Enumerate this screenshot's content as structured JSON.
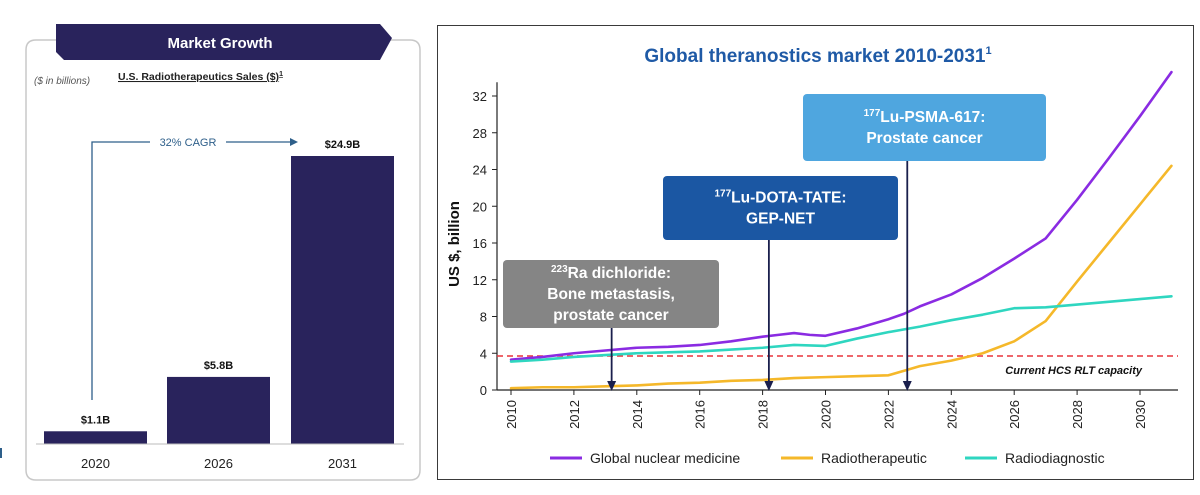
{
  "left_panel": {
    "header": "Market Growth",
    "units_note": "($ in billions)",
    "subtitle": "U.S. Radiotherapeutics Sales ($)",
    "subtitle_sup": "1",
    "cagr_label": "32% CAGR",
    "colors": {
      "bar": "#29235c",
      "header_bg": "#29235c",
      "arrow": "#2e5f8a"
    }
  },
  "right_panel": {
    "title": "Global theranostics market 2010-2031",
    "title_sup": "1",
    "capacity_label": "Current HCS RLT capacity",
    "annotations": [
      {
        "sup": "223",
        "line1": "Ra dichloride:",
        "line2": "Bone metastasis,",
        "line3": "prostate cancer",
        "year": 2013.2
      },
      {
        "sup": "177",
        "line1": "Lu-DOTA-TATE:",
        "line2": "GEP-NET",
        "line3": "",
        "year": 2018.2
      },
      {
        "sup": "177",
        "line1": "Lu-PSMA-617:",
        "line2": "Prostate cancer",
        "line3": "",
        "year": 2022.6
      }
    ],
    "colors": {
      "title": "#1f5aa6",
      "nuclear": "#8a2be2",
      "radiotherapeutic": "#f5b82a",
      "radiodiagnostic": "#2fd6c0",
      "capacity": "#e8343a",
      "box1": "#858585",
      "box2": "#1b57a3",
      "box3": "#4fa6df"
    }
  },
  "chart_data": [
    {
      "type": "bar",
      "title": "U.S. Radiotherapeutics Sales ($)",
      "categories": [
        "2020",
        "2026",
        "2031"
      ],
      "values": [
        1.1,
        5.8,
        24.9
      ],
      "value_labels": [
        "$1.1B",
        "$5.8B",
        "$24.9B"
      ],
      "ylabel": "",
      "ylim": [
        0,
        30
      ]
    },
    {
      "type": "line",
      "title": "Global theranostics market 2010-2031",
      "xlabel": "",
      "ylabel": "US $, billion",
      "xlim": [
        2010,
        2031.3
      ],
      "ylim": [
        0,
        34
      ],
      "x_ticks": [
        "2010",
        "2012",
        "2014",
        "2016",
        "2018",
        "2020",
        "2022",
        "2024",
        "2026",
        "2028",
        "2030"
      ],
      "y_ticks": [
        "0",
        "4",
        "8",
        "12",
        "16",
        "20",
        "24",
        "28",
        "32"
      ],
      "grid": false,
      "legend_position": "bottom",
      "reference_line": {
        "y": 3.7,
        "label": "Current HCS RLT capacity"
      },
      "series": [
        {
          "name": "Global nuclear medicine",
          "x": [
            2010,
            2011,
            2012,
            2013,
            2014,
            2015,
            2016,
            2017,
            2018,
            2018.5,
            2019,
            2019.5,
            2020,
            2021,
            2022,
            2022.5,
            2023,
            2024,
            2025,
            2026,
            2027,
            2028,
            2029,
            2030,
            2031
          ],
          "y": [
            3.3,
            3.6,
            4.0,
            4.3,
            4.6,
            4.7,
            4.9,
            5.3,
            5.8,
            6.0,
            6.2,
            6.0,
            5.9,
            6.7,
            7.7,
            8.3,
            9.1,
            10.4,
            12.2,
            14.3,
            16.5,
            20.7,
            25.2,
            29.8,
            34.6
          ]
        },
        {
          "name": "Radiotherapeutic",
          "x": [
            2010,
            2011,
            2012,
            2013,
            2014,
            2015,
            2016,
            2017,
            2018,
            2019,
            2020,
            2021,
            2022,
            2022.5,
            2023,
            2024,
            2025,
            2026,
            2027,
            2028,
            2029,
            2030,
            2031
          ],
          "y": [
            0.2,
            0.3,
            0.3,
            0.4,
            0.5,
            0.7,
            0.8,
            1.0,
            1.1,
            1.3,
            1.4,
            1.5,
            1.6,
            2.1,
            2.6,
            3.2,
            4.0,
            5.3,
            7.5,
            11.8,
            16.0,
            20.2,
            24.4
          ]
        },
        {
          "name": "Radiodiagnostic",
          "x": [
            2010,
            2011,
            2012,
            2013,
            2014,
            2015,
            2016,
            2017,
            2018,
            2019,
            2020,
            2021,
            2022,
            2023,
            2024,
            2025,
            2026,
            2027,
            2028,
            2029,
            2030,
            2031
          ],
          "y": [
            3.1,
            3.3,
            3.6,
            3.8,
            4.0,
            4.1,
            4.2,
            4.4,
            4.6,
            4.9,
            4.8,
            5.6,
            6.3,
            6.9,
            7.6,
            8.2,
            8.9,
            9.0,
            9.3,
            9.6,
            9.9,
            10.2
          ]
        }
      ]
    }
  ]
}
